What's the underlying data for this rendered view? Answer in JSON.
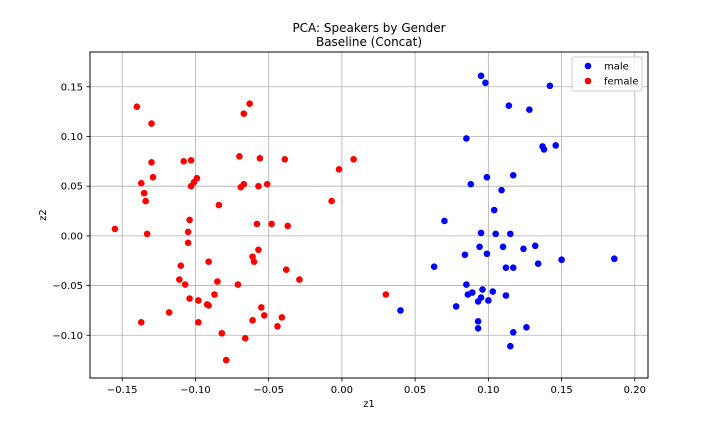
{
  "chart_data": {
    "type": "scatter",
    "title": "PCA: Speakers by Gender",
    "subtitle": "Baseline (Concat)",
    "xlabel": "z1",
    "ylabel": "z2",
    "xlim": [
      -0.172,
      0.209
    ],
    "ylim": [
      -0.143,
      0.185
    ],
    "xticks": [
      -0.15,
      -0.1,
      -0.05,
      0.0,
      0.05,
      0.1,
      0.15,
      0.2
    ],
    "xtick_labels": [
      "−0.15",
      "−0.10",
      "−0.05",
      "0.00",
      "0.05",
      "0.10",
      "0.15",
      "0.20"
    ],
    "yticks": [
      -0.1,
      -0.05,
      0.0,
      0.05,
      0.1,
      0.15
    ],
    "ytick_labels": [
      "−0.10",
      "−0.05",
      "0.00",
      "0.05",
      "0.10",
      "0.15"
    ],
    "grid": true,
    "legend_position": "top-right",
    "series": [
      {
        "name": "male",
        "color": "#0000ff",
        "points": [
          [
            0.095,
            0.161
          ],
          [
            0.098,
            0.154
          ],
          [
            0.142,
            0.151
          ],
          [
            0.114,
            0.131
          ],
          [
            0.128,
            0.127
          ],
          [
            0.085,
            0.098
          ],
          [
            0.137,
            0.09
          ],
          [
            0.146,
            0.091
          ],
          [
            0.138,
            0.087
          ],
          [
            0.117,
            0.061
          ],
          [
            0.099,
            0.059
          ],
          [
            0.088,
            0.052
          ],
          [
            0.109,
            0.046
          ],
          [
            0.104,
            0.026
          ],
          [
            0.07,
            0.015
          ],
          [
            0.095,
            0.003
          ],
          [
            0.105,
            0.002
          ],
          [
            0.115,
            0.002
          ],
          [
            0.094,
            -0.011
          ],
          [
            0.11,
            -0.011
          ],
          [
            0.132,
            -0.01
          ],
          [
            0.124,
            -0.013
          ],
          [
            0.099,
            -0.018
          ],
          [
            0.084,
            -0.019
          ],
          [
            0.15,
            -0.024
          ],
          [
            0.186,
            -0.023
          ],
          [
            0.134,
            -0.028
          ],
          [
            0.063,
            -0.031
          ],
          [
            0.112,
            -0.032
          ],
          [
            0.117,
            -0.032
          ],
          [
            0.085,
            -0.049
          ],
          [
            0.096,
            -0.054
          ],
          [
            0.103,
            -0.056
          ],
          [
            0.089,
            -0.057
          ],
          [
            0.086,
            -0.059
          ],
          [
            0.112,
            -0.06
          ],
          [
            0.095,
            -0.062
          ],
          [
            0.093,
            -0.066
          ],
          [
            0.1,
            -0.065
          ],
          [
            0.078,
            -0.071
          ],
          [
            0.04,
            -0.075
          ],
          [
            0.093,
            -0.086
          ],
          [
            0.093,
            -0.093
          ],
          [
            0.126,
            -0.092
          ],
          [
            0.117,
            -0.097
          ],
          [
            0.115,
            -0.111
          ]
        ]
      },
      {
        "name": "female",
        "color": "#ff0000",
        "points": [
          [
            -0.063,
            0.133
          ],
          [
            -0.14,
            0.13
          ],
          [
            -0.067,
            0.123
          ],
          [
            -0.13,
            0.113
          ],
          [
            -0.07,
            0.08
          ],
          [
            -0.056,
            0.078
          ],
          [
            -0.039,
            0.077
          ],
          [
            0.008,
            0.077
          ],
          [
            -0.103,
            0.076
          ],
          [
            -0.108,
            0.075
          ],
          [
            -0.13,
            0.074
          ],
          [
            -0.002,
            0.067
          ],
          [
            -0.129,
            0.059
          ],
          [
            -0.099,
            0.058
          ],
          [
            -0.101,
            0.054
          ],
          [
            -0.137,
            0.053
          ],
          [
            -0.067,
            0.052
          ],
          [
            -0.051,
            0.052
          ],
          [
            -0.103,
            0.05
          ],
          [
            -0.057,
            0.05
          ],
          [
            -0.069,
            0.049
          ],
          [
            -0.135,
            0.043
          ],
          [
            -0.134,
            0.035
          ],
          [
            -0.007,
            0.035
          ],
          [
            -0.084,
            0.031
          ],
          [
            -0.104,
            0.016
          ],
          [
            -0.058,
            0.012
          ],
          [
            -0.048,
            0.012
          ],
          [
            -0.037,
            0.01
          ],
          [
            -0.155,
            0.007
          ],
          [
            -0.105,
            0.004
          ],
          [
            -0.133,
            0.002
          ],
          [
            -0.105,
            -0.007
          ],
          [
            -0.057,
            -0.014
          ],
          [
            -0.061,
            -0.021
          ],
          [
            -0.06,
            -0.026
          ],
          [
            -0.091,
            -0.026
          ],
          [
            -0.11,
            -0.03
          ],
          [
            -0.038,
            -0.034
          ],
          [
            -0.111,
            -0.044
          ],
          [
            -0.029,
            -0.044
          ],
          [
            -0.085,
            -0.046
          ],
          [
            -0.107,
            -0.049
          ],
          [
            -0.071,
            -0.049
          ],
          [
            0.03,
            -0.059
          ],
          [
            -0.087,
            -0.059
          ],
          [
            -0.104,
            -0.063
          ],
          [
            -0.098,
            -0.065
          ],
          [
            -0.092,
            -0.069
          ],
          [
            -0.091,
            -0.07
          ],
          [
            -0.055,
            -0.072
          ],
          [
            -0.118,
            -0.077
          ],
          [
            -0.053,
            -0.08
          ],
          [
            -0.041,
            -0.082
          ],
          [
            -0.061,
            -0.085
          ],
          [
            -0.137,
            -0.087
          ],
          [
            -0.098,
            -0.087
          ],
          [
            -0.044,
            -0.091
          ],
          [
            -0.082,
            -0.098
          ],
          [
            -0.066,
            -0.103
          ],
          [
            -0.079,
            -0.125
          ]
        ]
      }
    ]
  }
}
